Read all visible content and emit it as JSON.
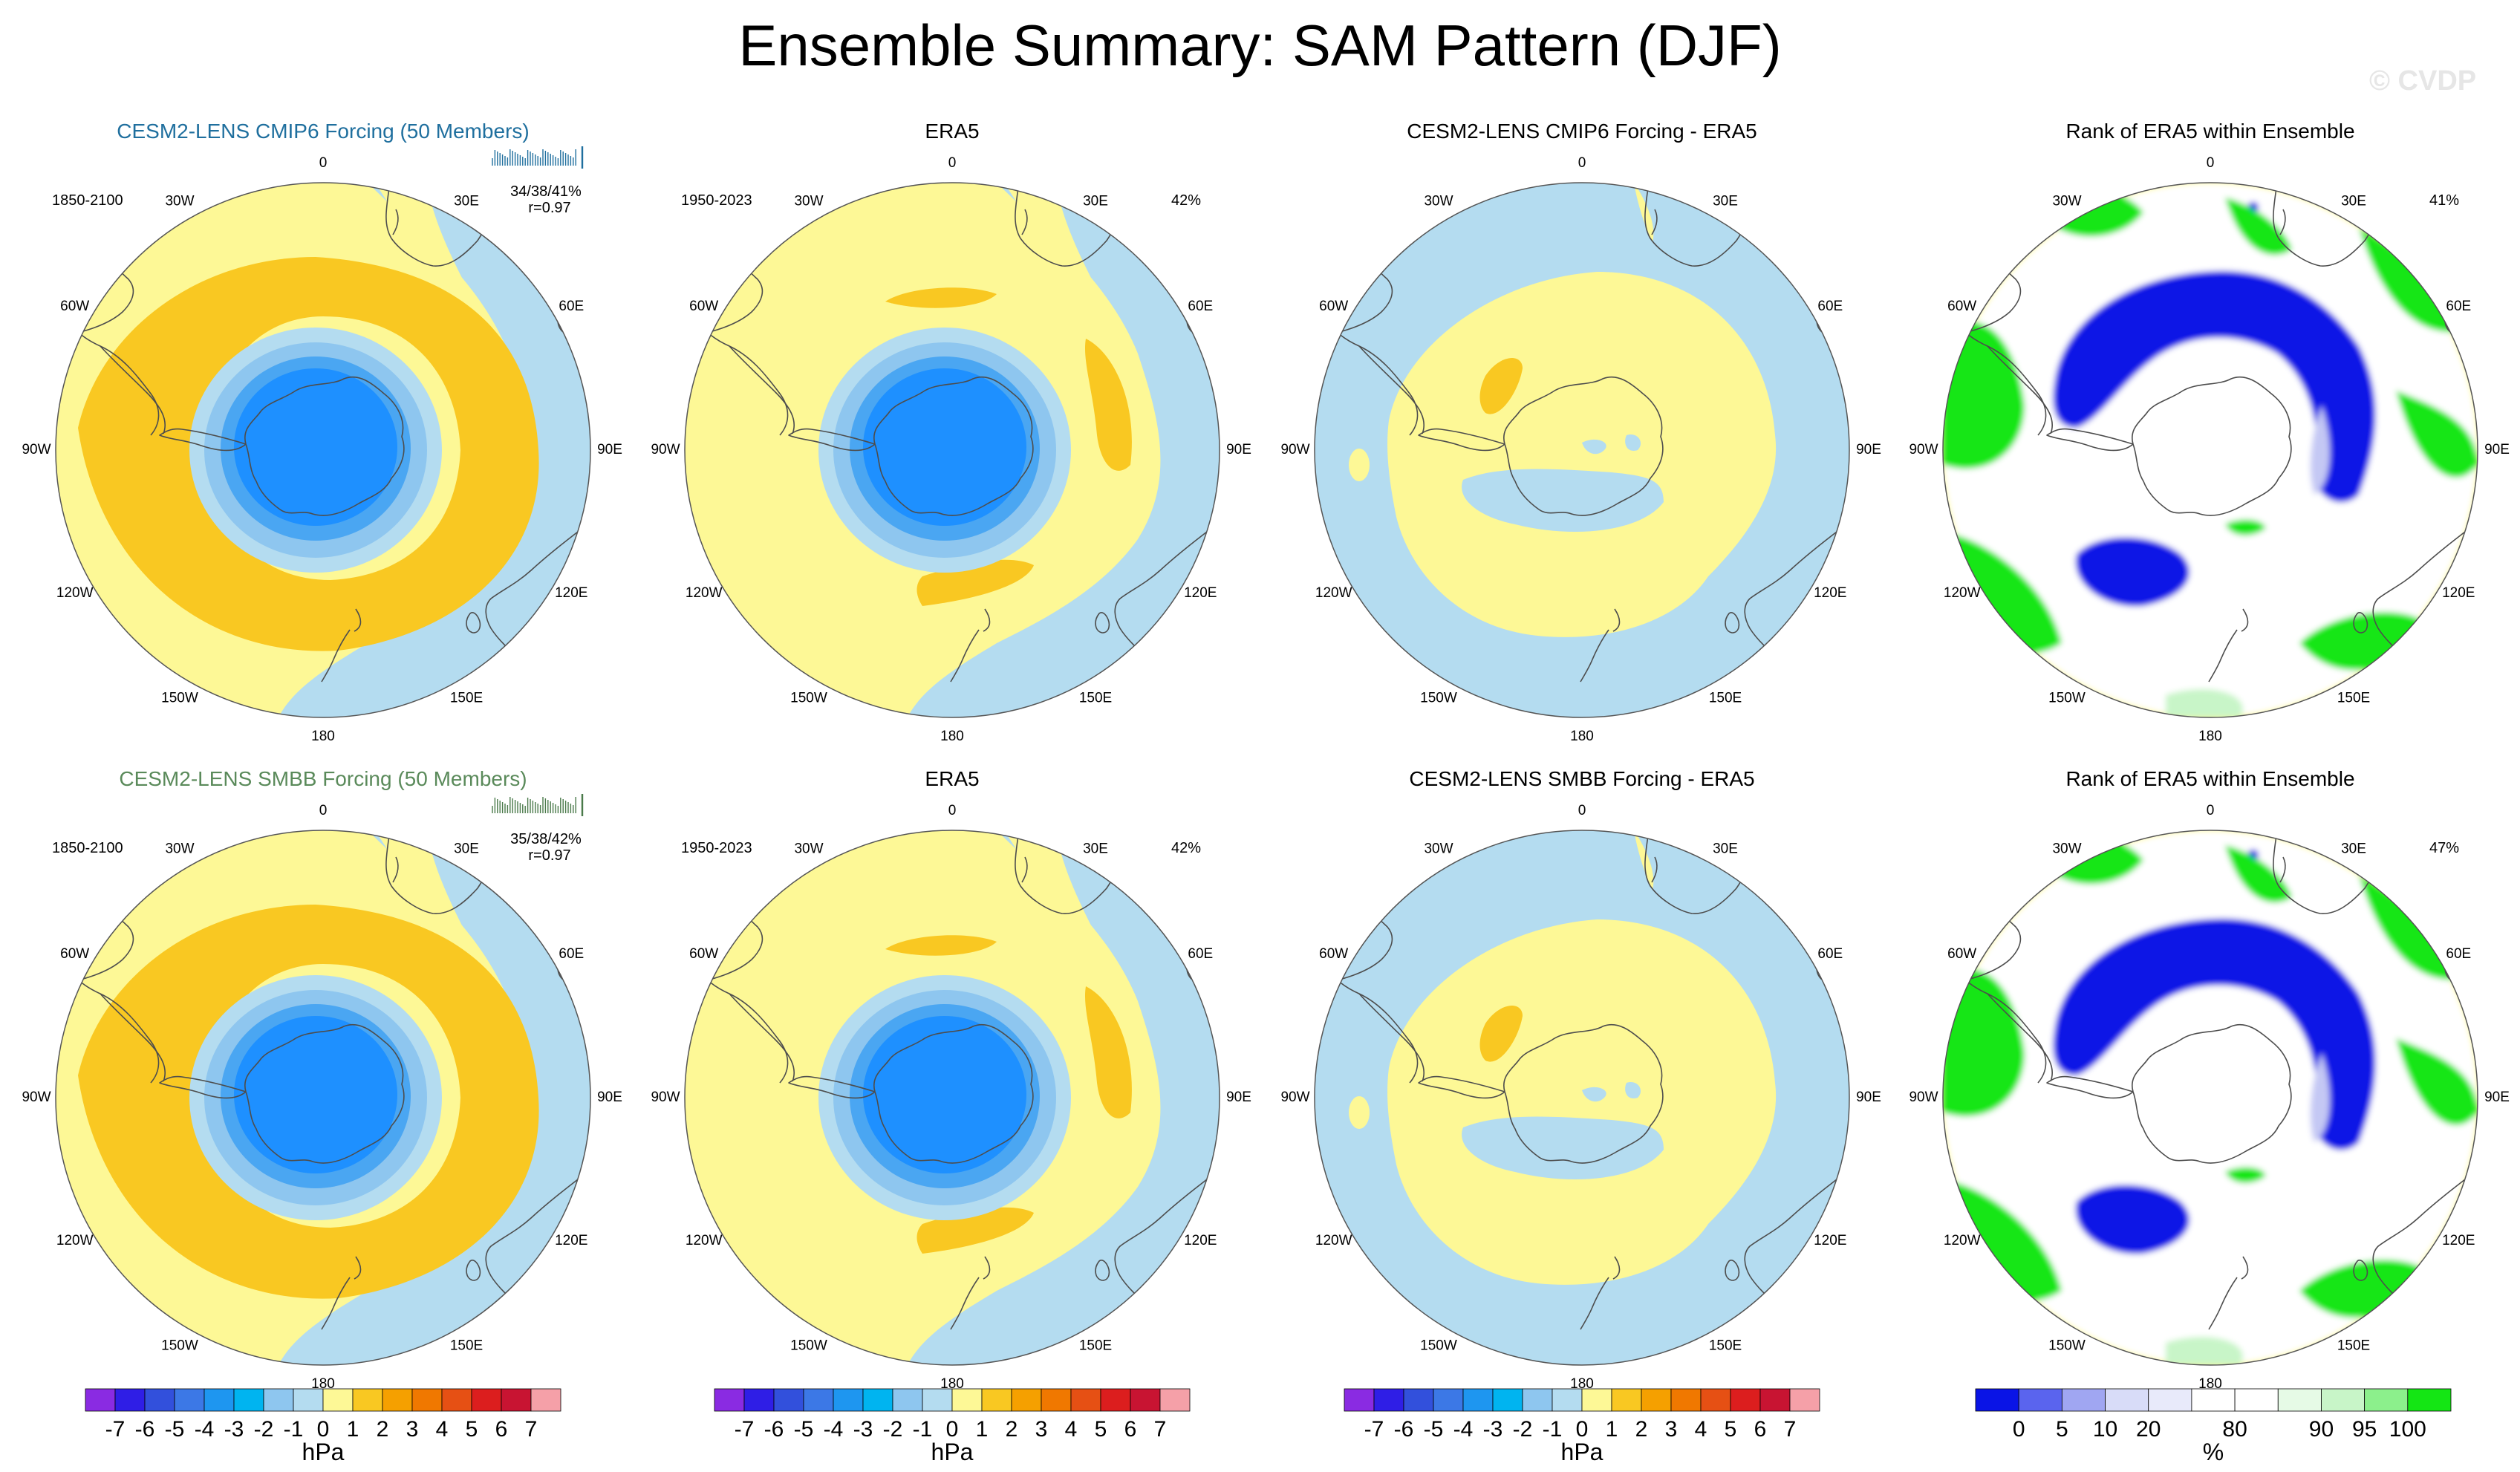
{
  "title": "Ensemble Summary: SAM Pattern (DJF)",
  "watermark": "© CVDP",
  "colors": {
    "lightBlue": "#b4dcf0",
    "lightYellow": "#fdf896",
    "orange": "#f9c822",
    "blue1": "#8ec6ef",
    "blue2": "#4aa6f2",
    "blue3": "#1e90ff",
    "rankBlue": "#0a14e6",
    "rankGreen": "#14e614",
    "rankPaleGreen": "#c8f5c8",
    "rankPaleBlue": "#c4c8f4"
  },
  "longitude_labels": [
    "0",
    "30E",
    "60E",
    "90E",
    "120E",
    "150E",
    "180",
    "150W",
    "120W",
    "90W",
    "60W",
    "30W"
  ],
  "rows": [
    {
      "ensemble": {
        "title": "CESM2-LENS CMIP6 Forcing (50 Members)",
        "title_color": "#1f6f9e",
        "period": "1850-2100",
        "stats": "34/38/41%",
        "corr": "r=0.97",
        "tick_color": "#1f6f9e"
      },
      "obs": {
        "title": "ERA5",
        "period": "1950-2023",
        "pct": "42%"
      },
      "diff": {
        "title": "CESM2-LENS CMIP6 Forcing - ERA5"
      },
      "rank": {
        "title": "Rank of ERA5 within Ensemble",
        "pct": "41%"
      }
    },
    {
      "ensemble": {
        "title": "CESM2-LENS SMBB Forcing (50 Members)",
        "title_color": "#5a8a5a",
        "period": "1850-2100",
        "stats": "35/38/42%",
        "corr": "r=0.97",
        "tick_color": "#4a7a4a"
      },
      "obs": {
        "title": "ERA5",
        "period": "1950-2023",
        "pct": "42%"
      },
      "diff": {
        "title": "CESM2-LENS SMBB Forcing - ERA5"
      },
      "rank": {
        "title": "Rank of ERA5 within Ensemble",
        "pct": "47%"
      }
    }
  ],
  "colorbar_hpa": {
    "colors": [
      "#8a2be2",
      "#2f1ee6",
      "#3250dc",
      "#3c78e6",
      "#1e96f0",
      "#00b4f0",
      "#8ec6ef",
      "#b4dcf0",
      "#fdf896",
      "#f9c822",
      "#f5a000",
      "#f07800",
      "#e65014",
      "#dc1e1e",
      "#c81432",
      "#f5a0a8"
    ],
    "labels": [
      "-7",
      "-6",
      "-5",
      "-4",
      "-3",
      "-2",
      "-1",
      "0",
      "1",
      "2",
      "3",
      "4",
      "5",
      "6",
      "7"
    ],
    "units": "hPa"
  },
  "colorbar_rank": {
    "colors": [
      "#0a14e6",
      "#5a64ee",
      "#a0a6f2",
      "#d8dcf8",
      "#e8eafa",
      "#ffffff",
      "#ffffff",
      "#e6fae6",
      "#c8f5c8",
      "#8cf08c",
      "#14e614"
    ],
    "labels": [
      "0",
      "5",
      "10",
      "20",
      "80",
      "90",
      "95",
      "100"
    ],
    "units": "%"
  }
}
